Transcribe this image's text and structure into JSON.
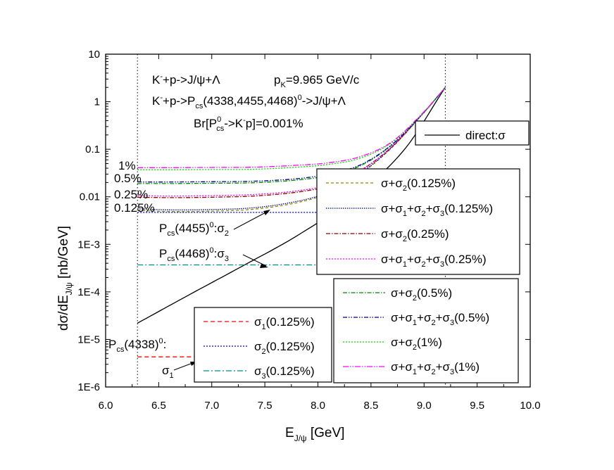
{
  "chart_data": {
    "type": "line",
    "xlabel": "E",
    "xlabel_sub": "J/ψ",
    "xlabel_unit": " [GeV]",
    "ylabel": "dσ/dE",
    "ylabel_sub": "J/ψ",
    "ylabel_unit": " [nb/GeV]",
    "xlim": [
      6.0,
      10.0
    ],
    "ylim": [
      1e-06,
      10
    ],
    "yscale": "log",
    "x_ticks": [
      "6.0",
      "6.5",
      "7.0",
      "7.5",
      "8.0",
      "8.5",
      "9.0",
      "9.5",
      "10.0"
    ],
    "y_ticks": [
      "1E-6",
      "1E-5",
      "1E-4",
      "1E-3",
      "0.01",
      "0.1",
      "1",
      "10"
    ],
    "vlines": [
      6.3,
      9.2
    ],
    "annotations": {
      "reaction1_a": "K",
      "reaction1_b": "+p->J/ψ+Λ",
      "momentum_a": "p",
      "momentum_sub": "K",
      "momentum_b": "=9.965 GeV/c",
      "reaction2_a": "K",
      "reaction2_b": "+p->P",
      "reaction2_sub": "cs",
      "reaction2_c": "(4338,4455,4468)",
      "reaction2_sup": "0",
      "reaction2_d": "->J/ψ+Λ",
      "br_a": "Br[P",
      "br_sup": "0",
      "br_sub": "cs",
      "br_b": "->K",
      "br_c": "p]=0.001%",
      "pct_1": "1%",
      "pct_05": "0.5%",
      "pct_025": "0.25%",
      "pct_0125": "0.125%",
      "p4455_a": "P",
      "p4455_sub": "cs",
      "p4455_b": "(4455)",
      "p4455_sup": "0",
      "p4455_c": ":σ",
      "p4455_sub2": "2",
      "p4468_a": "P",
      "p4468_sub": "cs",
      "p4468_b": "(4468)",
      "p4468_sup": "0",
      "p4468_c": ":σ",
      "p4468_sub2": "3",
      "p4338_a": "P",
      "p4338_sub": "cs",
      "p4338_b": "(4338)",
      "p4338_sup": "0",
      "p4338_c": ":",
      "sigma1_a": "σ",
      "sigma1_sub": "1"
    },
    "series": [
      {
        "name": "direct:σ",
        "color": "#000000",
        "dash": "",
        "x": [
          6.3,
          6.8,
          7.3,
          7.8,
          8.3,
          8.8,
          9.2
        ],
        "y": [
          2.2e-05,
          9e-05,
          0.00036,
          0.0015,
          0.0085,
          0.09,
          2.0
        ]
      },
      {
        "name": "σ+σ|2|(0.125%)",
        "color": "#8b8b00",
        "dash": "4,3",
        "x": [
          6.3,
          6.6,
          7.0,
          7.4,
          7.8,
          8.1,
          8.4,
          8.7,
          9.0,
          9.2
        ],
        "y": [
          0.0052,
          0.0049,
          0.005,
          0.0055,
          0.0075,
          0.012,
          0.03,
          0.11,
          0.6,
          2.0
        ]
      },
      {
        "name": "σ+σ|1|+σ|2|+σ|3|(0.125%)",
        "color": "#00008b",
        "dash": "1.5,1.5",
        "x": [
          6.3,
          6.6,
          7.0,
          7.4,
          7.8,
          8.1,
          8.4,
          8.7,
          9.0,
          9.2
        ],
        "y": [
          0.0056,
          0.0053,
          0.0054,
          0.0059,
          0.008,
          0.0125,
          0.031,
          0.112,
          0.6,
          2.0
        ]
      },
      {
        "name": "σ+σ|2|(0.25%)",
        "color": "#8b0000",
        "dash": "6,2,1.5,2",
        "x": [
          6.3,
          6.6,
          7.0,
          7.4,
          7.8,
          8.1,
          8.4,
          8.7,
          9.0,
          9.2
        ],
        "y": [
          0.0098,
          0.0096,
          0.0098,
          0.0104,
          0.0125,
          0.017,
          0.035,
          0.115,
          0.6,
          2.0
        ]
      },
      {
        "name": "σ+σ|1|+σ|2|+σ|3|(0.25%)",
        "color": "#ff00ff",
        "dash": "2,2",
        "x": [
          6.3,
          6.6,
          7.0,
          7.4,
          7.8,
          8.1,
          8.4,
          8.7,
          9.0,
          9.2
        ],
        "y": [
          0.0106,
          0.0104,
          0.0106,
          0.0112,
          0.0133,
          0.018,
          0.036,
          0.116,
          0.6,
          2.0
        ]
      },
      {
        "name": "σ+σ|2|(0.5%)",
        "color": "#008b00",
        "dash": "6,2,1.5,2",
        "x": [
          6.3,
          6.6,
          7.0,
          7.4,
          7.8,
          8.1,
          8.4,
          8.7,
          9.0,
          9.2
        ],
        "y": [
          0.019,
          0.019,
          0.0193,
          0.0198,
          0.0225,
          0.028,
          0.045,
          0.125,
          0.6,
          2.0
        ]
      },
      {
        "name": "σ+σ|1|+σ|2|+σ|3|(0.5%)",
        "color": "#00008b",
        "dash": "6,2,1.5,2,1.5,2",
        "x": [
          6.3,
          6.6,
          7.0,
          7.4,
          7.8,
          8.1,
          8.4,
          8.7,
          9.0,
          9.2
        ],
        "y": [
          0.0205,
          0.0205,
          0.0208,
          0.0213,
          0.024,
          0.03,
          0.047,
          0.127,
          0.6,
          2.0
        ]
      },
      {
        "name": "σ+σ|2|(1%)",
        "color": "#00dd00",
        "dash": "2,2",
        "x": [
          6.3,
          6.6,
          7.0,
          7.4,
          7.8,
          8.1,
          8.4,
          8.7,
          9.0,
          9.2
        ],
        "y": [
          0.037,
          0.037,
          0.0375,
          0.038,
          0.042,
          0.048,
          0.065,
          0.14,
          0.6,
          2.0
        ]
      },
      {
        "name": "σ+σ|1|+σ|2|+σ|3|(1%)",
        "color": "#ff00ff",
        "dash": "8,2,1.5,2,1.5,2",
        "x": [
          6.3,
          6.6,
          7.0,
          7.4,
          7.8,
          8.1,
          8.4,
          8.7,
          9.0,
          9.2
        ],
        "y": [
          0.041,
          0.041,
          0.0415,
          0.042,
          0.046,
          0.052,
          0.07,
          0.145,
          0.62,
          2.0
        ]
      },
      {
        "name": "σ|1|(0.125%)",
        "color": "#ff0000",
        "dash": "6,4",
        "x": [
          6.3,
          9.2
        ],
        "y": [
          4.3e-06,
          4.3e-06
        ]
      },
      {
        "name": "σ|2|(0.125%)",
        "color": "#0000ff",
        "dash": "2,2",
        "x": [
          6.3,
          9.2
        ],
        "y": [
          0.0047,
          0.0047
        ]
      },
      {
        "name": "σ|3|(0.125%)",
        "color": "#008b8b",
        "dash": "8,3,2,3",
        "x": [
          6.3,
          9.2
        ],
        "y": [
          0.00037,
          0.00037
        ]
      }
    ],
    "legends": [
      {
        "items": [
          0
        ]
      },
      {
        "items": [
          1,
          2,
          3,
          4
        ]
      },
      {
        "items": [
          5,
          6,
          7,
          8
        ]
      },
      {
        "items": [
          9,
          10,
          11
        ]
      }
    ]
  }
}
